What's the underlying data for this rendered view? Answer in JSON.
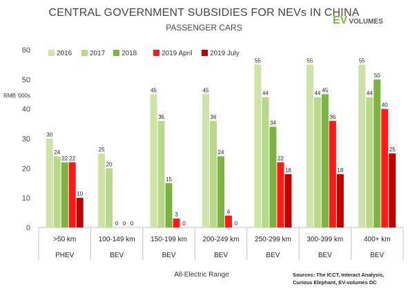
{
  "header": {
    "title": "CENTRAL GOVERNMENT SUBSIDIES FOR NEVs IN CHINA",
    "subtitle": "PASSENGER CARS",
    "brand_ev": "EV",
    "brand_volumes": "VOLUMES"
  },
  "sources": {
    "line1": "Sources: The ICCT, Interact Analysis,",
    "line2": "Curious Elephant, EV-volumes DC"
  },
  "chart_data": {
    "type": "bar",
    "title": "CENTRAL GOVERNMENT SUBSIDIES FOR NEVs IN CHINA",
    "subtitle": "PASSENGER CARS",
    "xlabel": "All-Electric Range",
    "ylabel": "RMB '000s",
    "ylim": [
      0,
      60
    ],
    "yticks": [
      0,
      10,
      20,
      30,
      40,
      50,
      60
    ],
    "grid": false,
    "legend_position": "top",
    "categories": [
      "&gt;50 km",
      "100-149 km",
      "150-199 km",
      "200-249 km",
      "250-299 km",
      "300-399 km",
      "400+ km"
    ],
    "groups": [
      "PHEV",
      "BEV",
      "BEV",
      "BEV",
      "BEV",
      "BEV",
      "BEV"
    ],
    "series": [
      {
        "name": "2016",
        "color": "#cfe2a8",
        "values": [
          30,
          25,
          45,
          45,
          55,
          55,
          55
        ]
      },
      {
        "name": "2017",
        "color": "#b8d98a",
        "values": [
          24,
          20,
          36,
          36,
          44,
          44,
          44
        ]
      },
      {
        "name": "2018",
        "color": "#7cb342",
        "values": [
          22,
          0,
          15,
          24,
          34,
          45,
          50
        ]
      },
      {
        "name": "2019 April",
        "color": "#ff1a1a",
        "values": [
          22,
          0,
          3,
          4,
          22,
          36,
          40
        ]
      },
      {
        "name": "2019 July",
        "color": "#c00000",
        "values": [
          10,
          0,
          0,
          0,
          18,
          18,
          25
        ]
      }
    ],
    "data_labels": [
      [
        "30",
        "24",
        "22",
        "22",
        "10"
      ],
      [
        "25",
        "20",
        "0",
        "0",
        "0"
      ],
      [
        "45",
        "36",
        "15",
        "3",
        "0"
      ],
      [
        "45",
        "36",
        "24",
        "4",
        "0"
      ],
      [
        "55",
        "44",
        "34",
        "22",
        "18"
      ],
      [
        "55",
        "44",
        "45",
        "36",
        "18"
      ],
      [
        "55",
        "44",
        "50",
        "40",
        "25"
      ]
    ]
  }
}
